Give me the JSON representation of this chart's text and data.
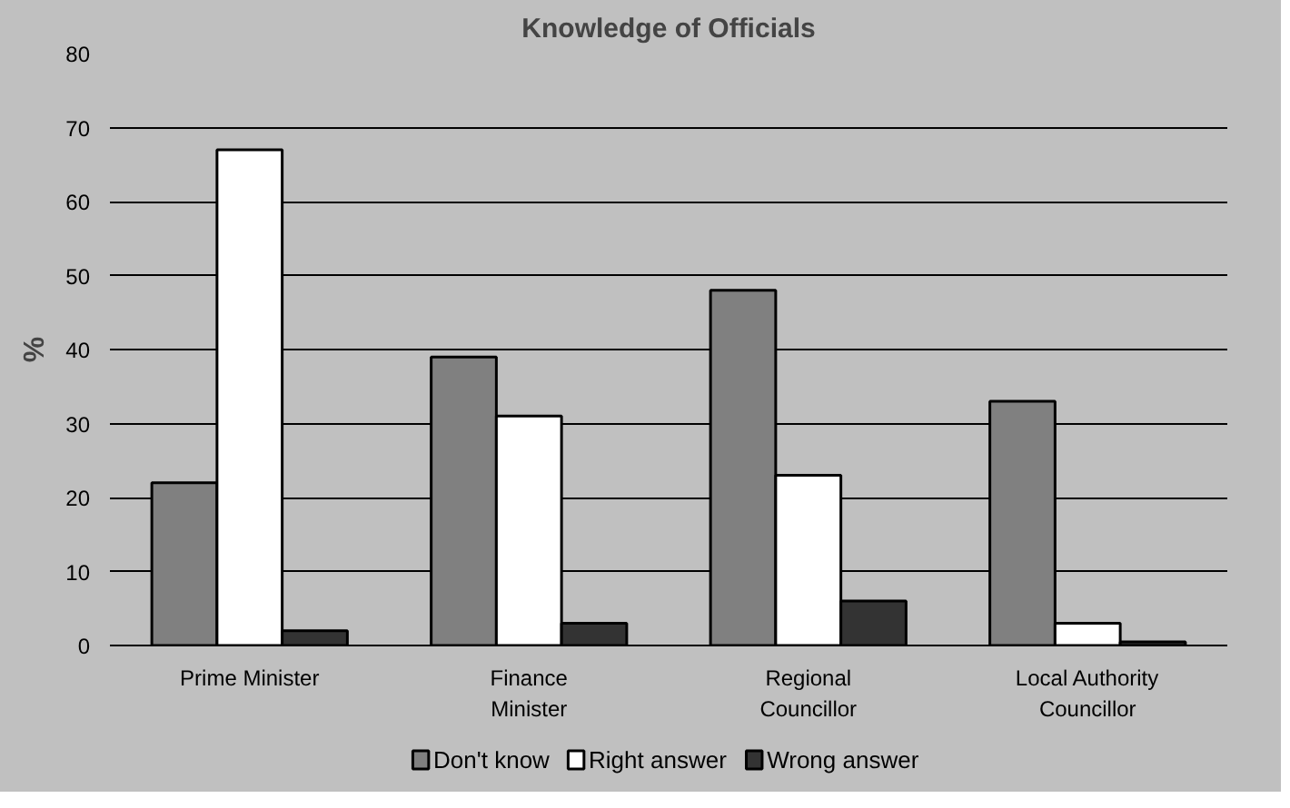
{
  "chart_data": {
    "type": "bar",
    "title": "Knowledge of Officials",
    "ylabel": "%",
    "categories": [
      "Prime Minister",
      "Finance Minister",
      "Regional Councillor",
      "Local Authority Councillor"
    ],
    "series": [
      {
        "name": "Don't know",
        "color": "#808080",
        "values": [
          22,
          39,
          48,
          33
        ]
      },
      {
        "name": "Right answer",
        "color": "#ffffff",
        "values": [
          67,
          31,
          23,
          3
        ]
      },
      {
        "name": "Wrong answer",
        "color": "#333333",
        "values": [
          2,
          3,
          6,
          0.5
        ]
      }
    ],
    "ylim": [
      0,
      80
    ],
    "yticks": [
      0,
      10,
      20,
      30,
      40,
      50,
      60,
      70,
      80
    ],
    "grid": "y",
    "legend": "bottom"
  }
}
